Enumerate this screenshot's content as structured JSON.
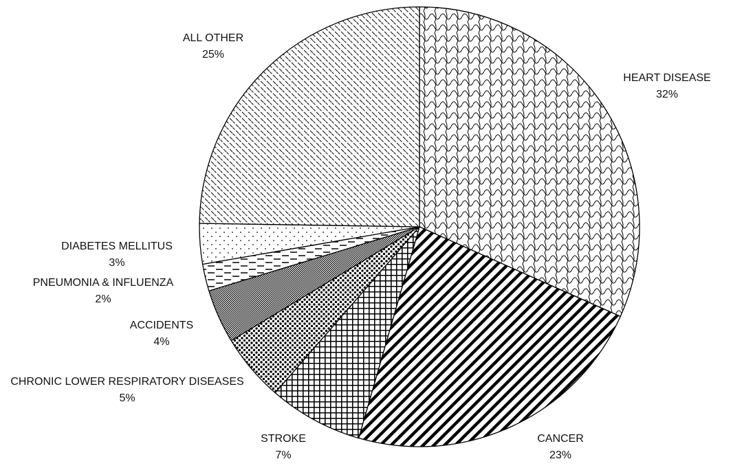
{
  "chart_data": {
    "type": "pie",
    "categories": [
      "HEART DISEASE",
      "CANCER",
      "STROKE",
      "CHRONIC LOWER RESPIRATORY DISEASES",
      "ACCIDENTS",
      "PNEUMONIA & INFLUENZA",
      "DIABETES MELLITUS",
      "ALL OTHER"
    ],
    "values": [
      32,
      23,
      7,
      5,
      4,
      2,
      3,
      25
    ],
    "value_labels": [
      "32%",
      "23%",
      "7%",
      "5%",
      "4%",
      "2%",
      "3%",
      "25%"
    ]
  }
}
